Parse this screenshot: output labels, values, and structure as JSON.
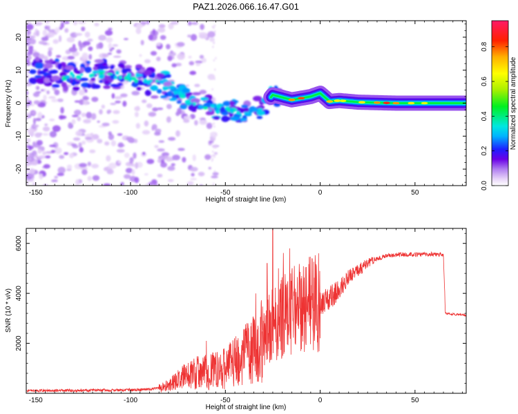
{
  "title": "PAZ1.2026.066.16.47.G01",
  "chart_data": [
    {
      "type": "heatmap",
      "xlabel": "Height of straight line (km)",
      "ylabel": "Frequency (Hz)",
      "xlim": [
        -155,
        77
      ],
      "ylim": [
        -25,
        25
      ],
      "xticks": [
        -150,
        -100,
        -50,
        0,
        50
      ],
      "yticks": [
        -20,
        -10,
        0,
        10,
        20
      ],
      "colorbar": {
        "label": "Normalized spectral amplitude",
        "range": [
          0,
          0.95
        ],
        "ticks": [
          0.0,
          0.2,
          0.4,
          0.6,
          0.8
        ]
      },
      "ridge": [
        {
          "x": -150,
          "y": 10
        },
        {
          "x": -140,
          "y": 9
        },
        {
          "x": -130,
          "y": 8
        },
        {
          "x": -120,
          "y": 9
        },
        {
          "x": -110,
          "y": 8.5
        },
        {
          "x": -100,
          "y": 8
        },
        {
          "x": -90,
          "y": 7
        },
        {
          "x": -80,
          "y": 5
        },
        {
          "x": -70,
          "y": 1
        },
        {
          "x": -60,
          "y": -1
        },
        {
          "x": -50,
          "y": -2
        },
        {
          "x": -40,
          "y": -3
        },
        {
          "x": -30,
          "y": -1
        },
        {
          "x": -25,
          "y": 2.5
        },
        {
          "x": -15,
          "y": 1
        },
        {
          "x": -5,
          "y": 2
        },
        {
          "x": 0,
          "y": 3
        },
        {
          "x": 5,
          "y": 0.5
        },
        {
          "x": 10,
          "y": 0.8
        },
        {
          "x": 20,
          "y": 0.3
        },
        {
          "x": 40,
          "y": 0
        },
        {
          "x": 77,
          "y": 0
        }
      ]
    },
    {
      "type": "line",
      "xlabel": "Height of straight line (km)",
      "ylabel": "SNR (10 * v/v)",
      "xlim": [
        -155,
        77
      ],
      "ylim": [
        0,
        6600
      ],
      "xticks": [
        -150,
        -100,
        -50,
        0,
        50
      ],
      "yticks": [
        2000,
        4000,
        6000
      ],
      "color": "#ee3333",
      "envelope": [
        {
          "x": -155,
          "y": 100
        },
        {
          "x": -100,
          "y": 130
        },
        {
          "x": -90,
          "y": 160
        },
        {
          "x": -85,
          "y": 200
        },
        {
          "x": -80,
          "y": 300
        },
        {
          "x": -75,
          "y": 500
        },
        {
          "x": -70,
          "y": 700
        },
        {
          "x": -65,
          "y": 800
        },
        {
          "x": -60,
          "y": 900
        },
        {
          "x": -55,
          "y": 900
        },
        {
          "x": -50,
          "y": 1000
        },
        {
          "x": -45,
          "y": 1200
        },
        {
          "x": -40,
          "y": 1500
        },
        {
          "x": -35,
          "y": 1800
        },
        {
          "x": -30,
          "y": 2200
        },
        {
          "x": -25,
          "y": 2800
        },
        {
          "x": -20,
          "y": 3000
        },
        {
          "x": -15,
          "y": 3300
        },
        {
          "x": -10,
          "y": 3400
        },
        {
          "x": -5,
          "y": 3500
        },
        {
          "x": 0,
          "y": 3700
        },
        {
          "x": 5,
          "y": 3800
        },
        {
          "x": 10,
          "y": 4200
        },
        {
          "x": 15,
          "y": 4600
        },
        {
          "x": 20,
          "y": 4900
        },
        {
          "x": 25,
          "y": 5200
        },
        {
          "x": 30,
          "y": 5400
        },
        {
          "x": 35,
          "y": 5500
        },
        {
          "x": 40,
          "y": 5540
        },
        {
          "x": 50,
          "y": 5560
        },
        {
          "x": 60,
          "y": 5560
        },
        {
          "x": 65,
          "y": 5540
        },
        {
          "x": 66,
          "y": 3200
        },
        {
          "x": 77,
          "y": 3120
        }
      ],
      "spikes": [
        {
          "x": -25,
          "y": 6600
        },
        {
          "x": -28,
          "y": 5200
        },
        {
          "x": -34,
          "y": 4000
        },
        {
          "x": -60,
          "y": 2100
        },
        {
          "x": -22,
          "y": 5000
        },
        {
          "x": -10,
          "y": 4600
        }
      ]
    }
  ]
}
